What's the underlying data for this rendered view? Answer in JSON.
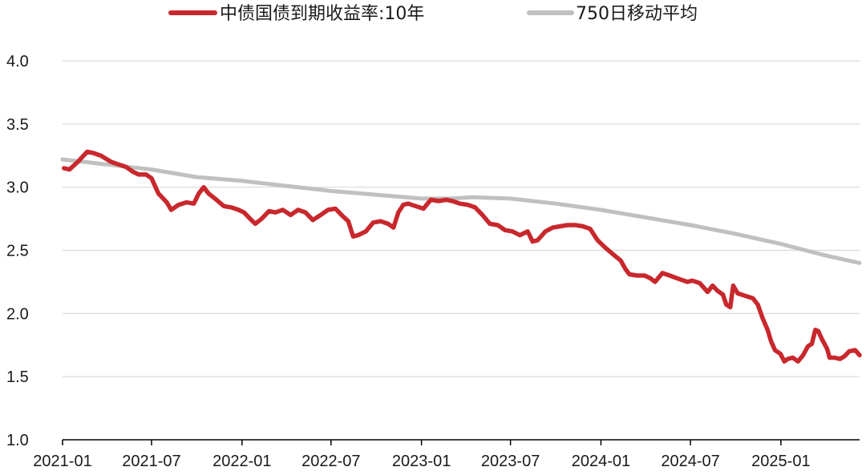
{
  "chart_data": {
    "type": "line",
    "x_range": [
      "2021-01-01",
      "2025-06-10"
    ],
    "ylim": [
      1.0,
      4.0
    ],
    "yticks": [
      1.0,
      1.5,
      2.0,
      2.5,
      3.0,
      3.5,
      4.0
    ],
    "ytick_labels": [
      "1.0",
      "1.5",
      "2.0",
      "2.5",
      "3.0",
      "3.5",
      "4.0"
    ],
    "xticks": [
      "2021-01-01",
      "2021-07-01",
      "2022-01-01",
      "2022-07-01",
      "2023-01-01",
      "2023-07-01",
      "2024-01-01",
      "2024-07-01",
      "2025-01-01"
    ],
    "xtick_labels": [
      "2021-01",
      "2021-07",
      "2022-01",
      "2022-07",
      "2023-01",
      "2023-07",
      "2024-01",
      "2024-07",
      "2025-01"
    ],
    "grid": true,
    "legend_position": "top",
    "series": [
      {
        "name": "中债国债到期收益率:10年",
        "color": "#c8282d",
        "points": [
          [
            "2021-01-04",
            3.15
          ],
          [
            "2021-01-15",
            3.14
          ],
          [
            "2021-02-01",
            3.2
          ],
          [
            "2021-02-20",
            3.28
          ],
          [
            "2021-03-05",
            3.27
          ],
          [
            "2021-03-20",
            3.25
          ],
          [
            "2021-04-10",
            3.2
          ],
          [
            "2021-04-25",
            3.18
          ],
          [
            "2021-05-10",
            3.16
          ],
          [
            "2021-05-25",
            3.12
          ],
          [
            "2021-06-05",
            3.1
          ],
          [
            "2021-06-20",
            3.1
          ],
          [
            "2021-07-01",
            3.07
          ],
          [
            "2021-07-15",
            2.95
          ],
          [
            "2021-08-01",
            2.88
          ],
          [
            "2021-08-10",
            2.82
          ],
          [
            "2021-08-25",
            2.86
          ],
          [
            "2021-09-10",
            2.88
          ],
          [
            "2021-09-25",
            2.87
          ],
          [
            "2021-10-05",
            2.95
          ],
          [
            "2021-10-15",
            3.0
          ],
          [
            "2021-10-25",
            2.95
          ],
          [
            "2021-11-10",
            2.9
          ],
          [
            "2021-11-25",
            2.85
          ],
          [
            "2021-12-10",
            2.84
          ],
          [
            "2021-12-25",
            2.82
          ],
          [
            "2022-01-05",
            2.8
          ],
          [
            "2022-01-20",
            2.74
          ],
          [
            "2022-01-28",
            2.71
          ],
          [
            "2022-02-10",
            2.75
          ],
          [
            "2022-02-25",
            2.81
          ],
          [
            "2022-03-10",
            2.8
          ],
          [
            "2022-03-25",
            2.82
          ],
          [
            "2022-04-10",
            2.78
          ],
          [
            "2022-04-25",
            2.82
          ],
          [
            "2022-05-10",
            2.8
          ],
          [
            "2022-05-25",
            2.74
          ],
          [
            "2022-06-10",
            2.78
          ],
          [
            "2022-06-25",
            2.82
          ],
          [
            "2022-07-10",
            2.83
          ],
          [
            "2022-07-25",
            2.77
          ],
          [
            "2022-08-05",
            2.73
          ],
          [
            "2022-08-15",
            2.61
          ],
          [
            "2022-08-25",
            2.62
          ],
          [
            "2022-09-10",
            2.65
          ],
          [
            "2022-09-25",
            2.72
          ],
          [
            "2022-10-10",
            2.73
          ],
          [
            "2022-10-25",
            2.71
          ],
          [
            "2022-11-05",
            2.68
          ],
          [
            "2022-11-15",
            2.8
          ],
          [
            "2022-11-25",
            2.86
          ],
          [
            "2022-12-05",
            2.87
          ],
          [
            "2022-12-20",
            2.85
          ],
          [
            "2023-01-05",
            2.83
          ],
          [
            "2023-01-20",
            2.9
          ],
          [
            "2023-02-05",
            2.89
          ],
          [
            "2023-02-20",
            2.9
          ],
          [
            "2023-03-05",
            2.89
          ],
          [
            "2023-03-20",
            2.87
          ],
          [
            "2023-04-05",
            2.86
          ],
          [
            "2023-04-20",
            2.84
          ],
          [
            "2023-05-05",
            2.78
          ],
          [
            "2023-05-20",
            2.71
          ],
          [
            "2023-06-05",
            2.7
          ],
          [
            "2023-06-20",
            2.66
          ],
          [
            "2023-07-05",
            2.65
          ],
          [
            "2023-07-20",
            2.62
          ],
          [
            "2023-08-05",
            2.65
          ],
          [
            "2023-08-15",
            2.57
          ],
          [
            "2023-08-25",
            2.58
          ],
          [
            "2023-09-10",
            2.65
          ],
          [
            "2023-09-25",
            2.68
          ],
          [
            "2023-10-10",
            2.69
          ],
          [
            "2023-10-25",
            2.7
          ],
          [
            "2023-11-10",
            2.7
          ],
          [
            "2023-11-25",
            2.69
          ],
          [
            "2023-12-10",
            2.67
          ],
          [
            "2023-12-25",
            2.58
          ],
          [
            "2024-01-10",
            2.52
          ],
          [
            "2024-01-25",
            2.47
          ],
          [
            "2024-02-10",
            2.42
          ],
          [
            "2024-02-20",
            2.35
          ],
          [
            "2024-02-28",
            2.31
          ],
          [
            "2024-03-15",
            2.3
          ],
          [
            "2024-03-30",
            2.3
          ],
          [
            "2024-04-10",
            2.28
          ],
          [
            "2024-04-20",
            2.25
          ],
          [
            "2024-05-05",
            2.32
          ],
          [
            "2024-05-20",
            2.3
          ],
          [
            "2024-06-10",
            2.27
          ],
          [
            "2024-06-25",
            2.25
          ],
          [
            "2024-07-05",
            2.26
          ],
          [
            "2024-07-20",
            2.24
          ],
          [
            "2024-08-05",
            2.17
          ],
          [
            "2024-08-15",
            2.22
          ],
          [
            "2024-08-25",
            2.18
          ],
          [
            "2024-09-05",
            2.15
          ],
          [
            "2024-09-12",
            2.07
          ],
          [
            "2024-09-20",
            2.05
          ],
          [
            "2024-09-26",
            2.22
          ],
          [
            "2024-10-05",
            2.16
          ],
          [
            "2024-10-20",
            2.14
          ],
          [
            "2024-11-05",
            2.12
          ],
          [
            "2024-11-15",
            2.07
          ],
          [
            "2024-11-25",
            1.96
          ],
          [
            "2024-12-05",
            1.87
          ],
          [
            "2024-12-12",
            1.78
          ],
          [
            "2024-12-20",
            1.71
          ],
          [
            "2024-12-31",
            1.68
          ],
          [
            "2025-01-08",
            1.62
          ],
          [
            "2025-01-15",
            1.64
          ],
          [
            "2025-01-25",
            1.65
          ],
          [
            "2025-02-05",
            1.62
          ],
          [
            "2025-02-15",
            1.67
          ],
          [
            "2025-02-25",
            1.74
          ],
          [
            "2025-03-05",
            1.76
          ],
          [
            "2025-03-12",
            1.87
          ],
          [
            "2025-03-18",
            1.86
          ],
          [
            "2025-03-25",
            1.8
          ],
          [
            "2025-04-05",
            1.72
          ],
          [
            "2025-04-10",
            1.65
          ],
          [
            "2025-04-20",
            1.65
          ],
          [
            "2025-05-01",
            1.64
          ],
          [
            "2025-05-10",
            1.66
          ],
          [
            "2025-05-20",
            1.7
          ],
          [
            "2025-06-01",
            1.71
          ],
          [
            "2025-06-10",
            1.67
          ]
        ]
      },
      {
        "name": "750日移动平均",
        "color": "#c0c0c0",
        "points": [
          [
            "2021-01-01",
            3.22
          ],
          [
            "2021-04-01",
            3.18
          ],
          [
            "2021-07-01",
            3.14
          ],
          [
            "2021-10-01",
            3.08
          ],
          [
            "2022-01-01",
            3.05
          ],
          [
            "2022-04-01",
            3.01
          ],
          [
            "2022-07-01",
            2.97
          ],
          [
            "2022-10-01",
            2.94
          ],
          [
            "2023-01-01",
            2.91
          ],
          [
            "2023-03-01",
            2.91
          ],
          [
            "2023-04-15",
            2.92
          ],
          [
            "2023-07-01",
            2.91
          ],
          [
            "2023-10-01",
            2.87
          ],
          [
            "2024-01-01",
            2.82
          ],
          [
            "2024-04-01",
            2.76
          ],
          [
            "2024-07-01",
            2.7
          ],
          [
            "2024-10-01",
            2.63
          ],
          [
            "2025-01-01",
            2.55
          ],
          [
            "2025-04-01",
            2.46
          ],
          [
            "2025-06-10",
            2.4
          ]
        ]
      }
    ]
  }
}
